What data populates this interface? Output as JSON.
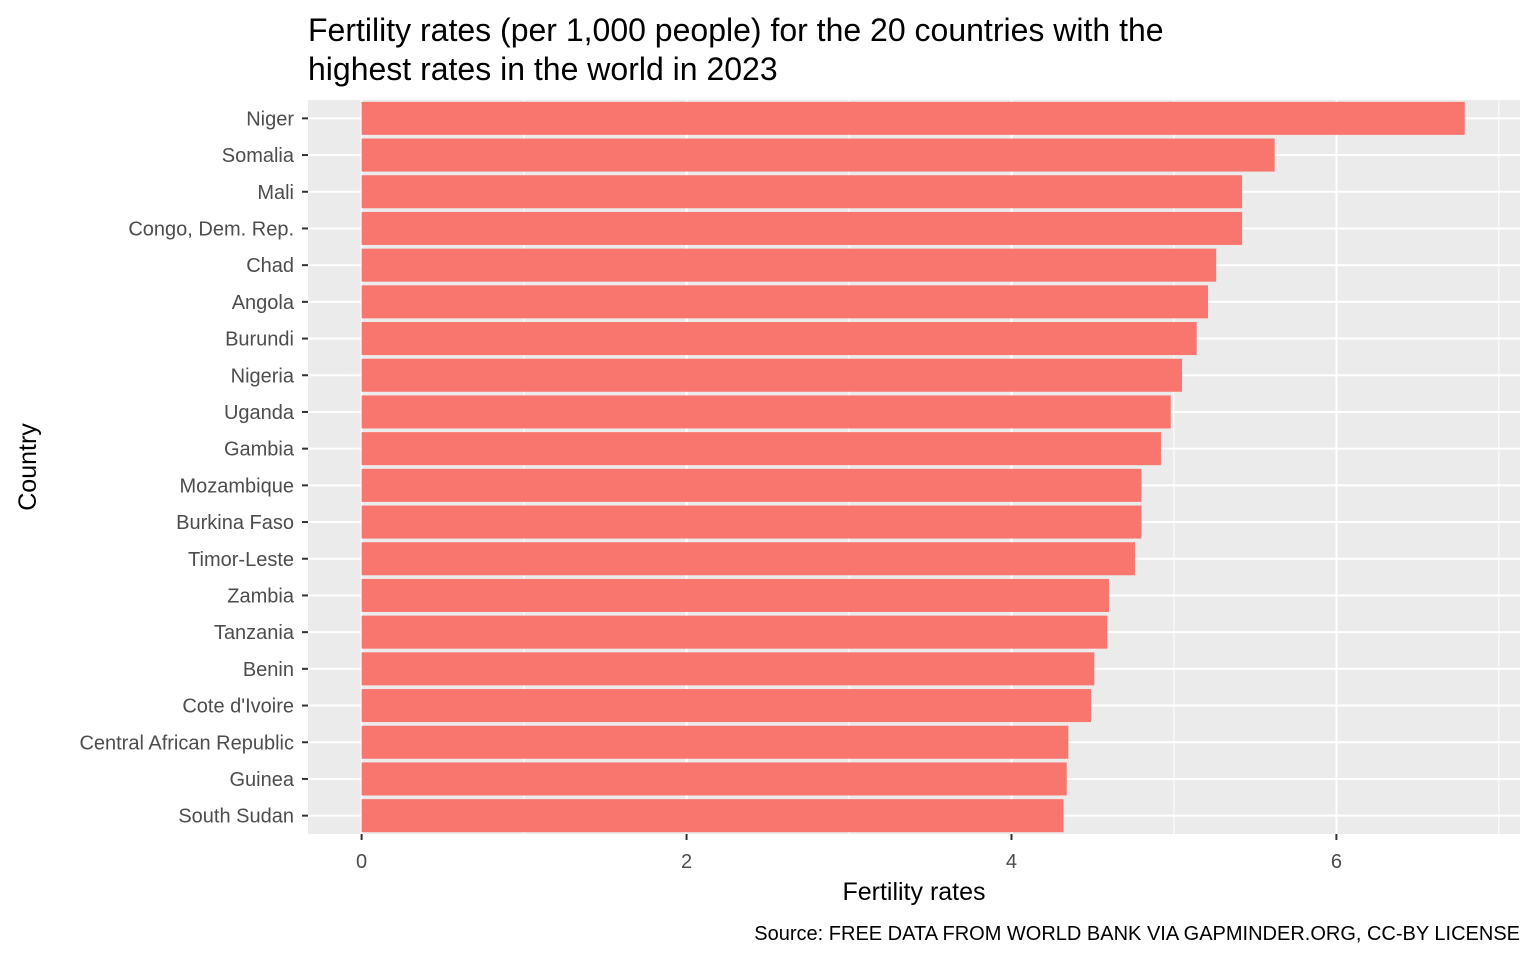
{
  "chart_data": {
    "type": "bar",
    "orientation": "horizontal",
    "title": "Fertility rates (per 1,000 people) for the 20 countries with the highest rates in the world in 2023",
    "title_lines": [
      "Fertility rates (per 1,000 people) for the 20 countries with the",
      "highest rates in the world in 2023"
    ],
    "xlabel": "Fertility rates",
    "ylabel": "Country",
    "caption": "Source: FREE DATA FROM WORLD BANK VIA GAPMINDER.ORG, CC-BY LICENSE",
    "categories": [
      "Niger",
      "Somalia",
      "Mali",
      "Congo, Dem. Rep.",
      "Chad",
      "Angola",
      "Burundi",
      "Nigeria",
      "Uganda",
      "Gambia",
      "Mozambique",
      "Burkina Faso",
      "Timor-Leste",
      "Zambia",
      "Tanzania",
      "Benin",
      "Cote d'Ivoire",
      "Central African Republic",
      "Guinea",
      "South Sudan"
    ],
    "values": [
      6.79,
      5.62,
      5.42,
      5.42,
      5.26,
      5.21,
      5.14,
      5.05,
      4.98,
      4.92,
      4.8,
      4.8,
      4.76,
      4.6,
      4.59,
      4.51,
      4.49,
      4.35,
      4.34,
      4.32
    ],
    "xlim": [
      -0.33,
      7.13
    ],
    "xticks": [
      0,
      2,
      4,
      6
    ],
    "tick_labels": [
      "0",
      "2",
      "4",
      "6"
    ],
    "grid": true,
    "colors": {
      "bar": "#F8766D",
      "panel": "#EBEBEB",
      "grid": "#FFFFFF"
    }
  }
}
